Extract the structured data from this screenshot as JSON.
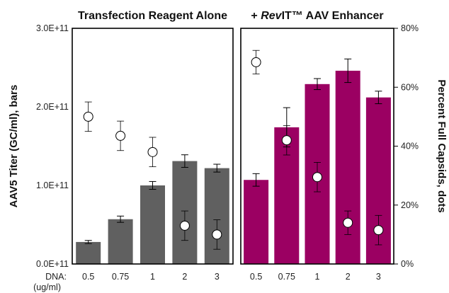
{
  "chart_data": {
    "type": "bar",
    "categories": [
      "0.5",
      "0.75",
      "1",
      "2",
      "3"
    ],
    "x_name": "DNA:",
    "x_unit": "(ug/ml)",
    "left_axis": {
      "label": "AAV5 Titer (GC/ml), bars",
      "range": [
        0,
        300000000000
      ],
      "ticks": [
        {
          "value": 0,
          "label": "0.0E+11"
        },
        {
          "value": 100000000000,
          "label": "1.0E+11"
        },
        {
          "value": 200000000000,
          "label": "2.0E+11"
        },
        {
          "value": 300000000000,
          "label": "3.0E+11"
        }
      ]
    },
    "right_axis": {
      "label": "Percent Full Capsids, dots",
      "range": [
        0,
        80
      ],
      "ticks": [
        {
          "value": 0,
          "label": "0%"
        },
        {
          "value": 20,
          "label": "20%"
        },
        {
          "value": 40,
          "label": "40%"
        },
        {
          "value": 60,
          "label": "60%"
        },
        {
          "value": 80,
          "label": "80%"
        }
      ]
    },
    "panels": [
      {
        "title_prefix": "",
        "title_italic": "",
        "title_suffix": "Transfection Reagent Alone",
        "bar_color": "#606060",
        "titer": [
          28000000000,
          57000000000,
          100000000000,
          131000000000,
          122000000000
        ],
        "titer_err": [
          2000000000,
          4000000000,
          5000000000,
          8000000000,
          5000000000
        ],
        "full_pct": [
          50,
          43.5,
          38,
          13,
          10
        ],
        "full_err": [
          5,
          5,
          5,
          5,
          5
        ]
      },
      {
        "title_prefix": "+ ",
        "title_italic": "Rev",
        "title_suffix": "IT™ AAV Enhancer",
        "bar_color": "#9b0062",
        "titer": [
          107000000000,
          174000000000,
          229000000000,
          246000000000,
          212000000000
        ],
        "titer_err": [
          8000000000,
          25000000000,
          7000000000,
          15000000000,
          8000000000
        ],
        "full_pct": [
          68.5,
          42,
          29.5,
          14,
          11.5
        ],
        "full_err": [
          4,
          5,
          5,
          4,
          5
        ]
      }
    ]
  }
}
